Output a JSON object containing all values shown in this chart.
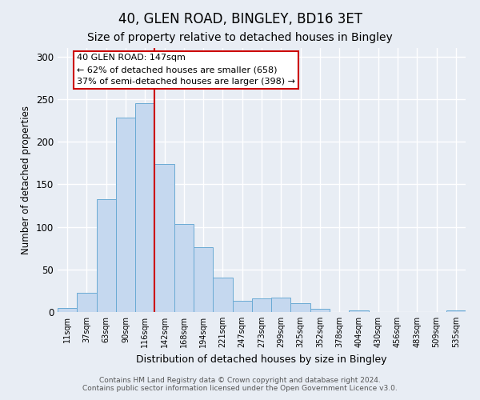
{
  "title": "40, GLEN ROAD, BINGLEY, BD16 3ET",
  "subtitle": "Size of property relative to detached houses in Bingley",
  "xlabel": "Distribution of detached houses by size in Bingley",
  "ylabel": "Number of detached properties",
  "bar_labels": [
    "11sqm",
    "37sqm",
    "63sqm",
    "90sqm",
    "116sqm",
    "142sqm",
    "168sqm",
    "194sqm",
    "221sqm",
    "247sqm",
    "273sqm",
    "299sqm",
    "325sqm",
    "352sqm",
    "378sqm",
    "404sqm",
    "430sqm",
    "456sqm",
    "483sqm",
    "509sqm",
    "535sqm"
  ],
  "bar_values": [
    5,
    23,
    132,
    228,
    245,
    174,
    103,
    76,
    40,
    13,
    16,
    17,
    10,
    4,
    0,
    2,
    0,
    0,
    0,
    0,
    2
  ],
  "bar_color": "#c5d8ef",
  "bar_edgecolor": "#6aaad4",
  "bar_linewidth": 0.7,
  "vline_color": "#cc0000",
  "vline_bar_index": 5,
  "annotation_text": "40 GLEN ROAD: 147sqm\n← 62% of detached houses are smaller (658)\n37% of semi-detached houses are larger (398) →",
  "annotation_box_facecolor": "#ffffff",
  "annotation_box_edgecolor": "#cc0000",
  "ylim": [
    0,
    310
  ],
  "yticks": [
    0,
    50,
    100,
    150,
    200,
    250,
    300
  ],
  "background_color": "#e8edf4",
  "grid_color": "#ffffff",
  "footer_line1": "Contains HM Land Registry data © Crown copyright and database right 2024.",
  "footer_line2": "Contains public sector information licensed under the Open Government Licence v3.0.",
  "title_fontsize": 12,
  "subtitle_fontsize": 10,
  "ylabel_text": "Number of detached properties",
  "figwidth": 6.0,
  "figheight": 5.0,
  "dpi": 100
}
